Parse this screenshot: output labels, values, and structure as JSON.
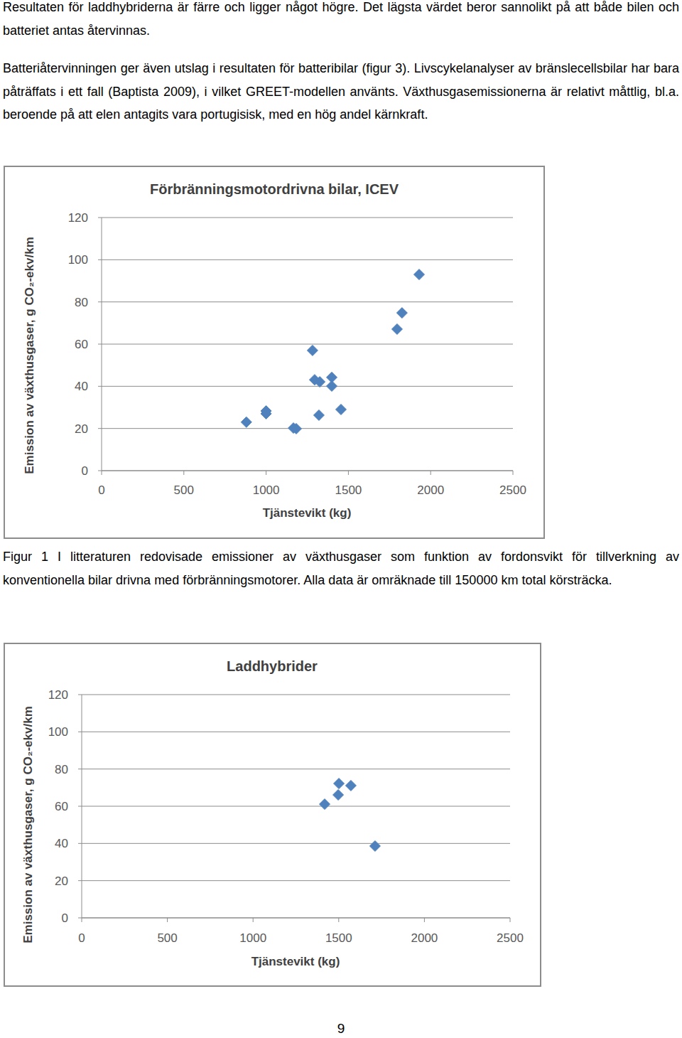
{
  "paragraphs": [
    "Resultaten för laddhybriderna är färre och ligger något högre. Det lägsta värdet beror sannolikt på att både bilen och batteriet antas återvinnas.",
    "Batteriåtervinningen ger även utslag i resultaten för batteribilar (figur 3). Livscykelanalyser av bränslecellsbilar har bara påträffats i ett fall (Baptista 2009), i vilket GREET-modellen använts. Växthusgasemissionerna är relativt måttlig, bl.a. beroende på att elen antagits vara portugisisk, med en hög andel kärnkraft."
  ],
  "chart_data": [
    {
      "type": "scatter",
      "title": "Förbränningsmotordrivna bilar, ICEV",
      "x_label": "Tjänstevikt (kg)",
      "y_label": "Emission av växthusgaser, g CO₂-ekv/km",
      "x": [
        880,
        1000,
        1000,
        1166,
        1183,
        1282,
        1295,
        1326,
        1399,
        1399,
        1321,
        1455,
        1796,
        1826,
        1930
      ],
      "values": [
        23,
        28.3,
        27,
        20.2,
        19.9,
        57,
        43.1,
        42.1,
        44.2,
        40.1,
        26.3,
        29,
        67.1,
        74.8,
        93
      ],
      "color": "#4f81bd",
      "marker": "diamond",
      "xlim": [
        0,
        2500
      ],
      "ylim": [
        0,
        120
      ],
      "xticks": [
        0,
        500,
        1000,
        1500,
        2000,
        2500
      ],
      "yticks": [
        0,
        20,
        40,
        60,
        80,
        100,
        120
      ],
      "grid": true
    },
    {
      "type": "scatter",
      "title": "Laddhybrider",
      "x_label": "Tjänstevikt (kg)",
      "y_label": "Emission av växthusgaser, g CO₂-ekv/km",
      "x": [
        1418,
        1501,
        1497,
        1571,
        1712
      ],
      "values": [
        61.1,
        72.2,
        66.1,
        71.1,
        38.6
      ],
      "color": "#4f81bd",
      "marker": "diamond",
      "xlim": [
        0,
        2500
      ],
      "ylim": [
        0,
        120
      ],
      "xticks": [
        0,
        500,
        1000,
        1500,
        2000,
        2500
      ],
      "yticks": [
        0,
        20,
        40,
        60,
        80,
        100,
        120
      ],
      "grid": true
    }
  ],
  "figure_captions": [
    "Figur 1 I litteraturen redovisade emissioner av växthusgaser som funktion av fordonsvikt för tillverkning av konventionella bilar drivna med förbränningsmotorer. Alla data är omräknade till 150000 km total körsträcka."
  ],
  "page_number": "9"
}
